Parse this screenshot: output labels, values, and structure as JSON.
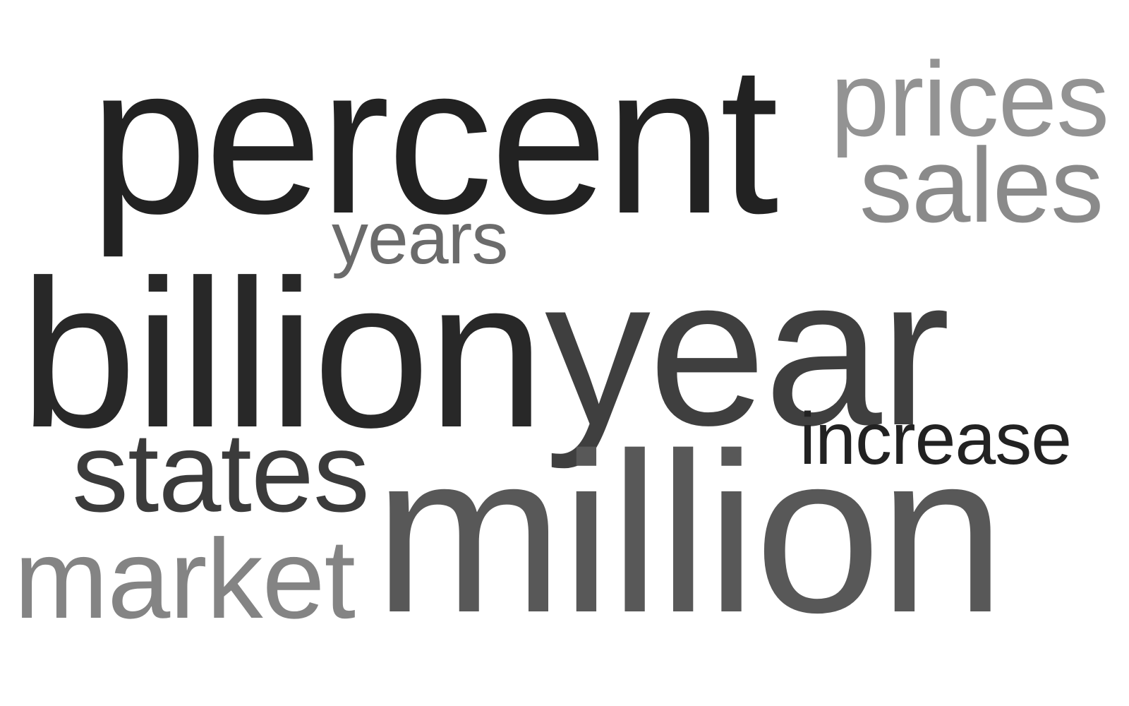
{
  "words": {
    "percent": {
      "text": "percent",
      "color": "#222222"
    },
    "prices": {
      "text": "prices",
      "color": "#939393"
    },
    "sales": {
      "text": "sales",
      "color": "#8a8a8a"
    },
    "years": {
      "text": "years",
      "color": "#6b6b6b"
    },
    "billion": {
      "text": "billion",
      "color": "#282828"
    },
    "year": {
      "text": "year",
      "color": "#3f3f3f"
    },
    "increase": {
      "text": "increase",
      "color": "#222222"
    },
    "states": {
      "text": "states",
      "color": "#3b3b3b"
    },
    "million": {
      "text": "million",
      "color": "#585858"
    },
    "market": {
      "text": "market",
      "color": "#848484"
    }
  },
  "colors": {
    "background": "#ffffff"
  }
}
